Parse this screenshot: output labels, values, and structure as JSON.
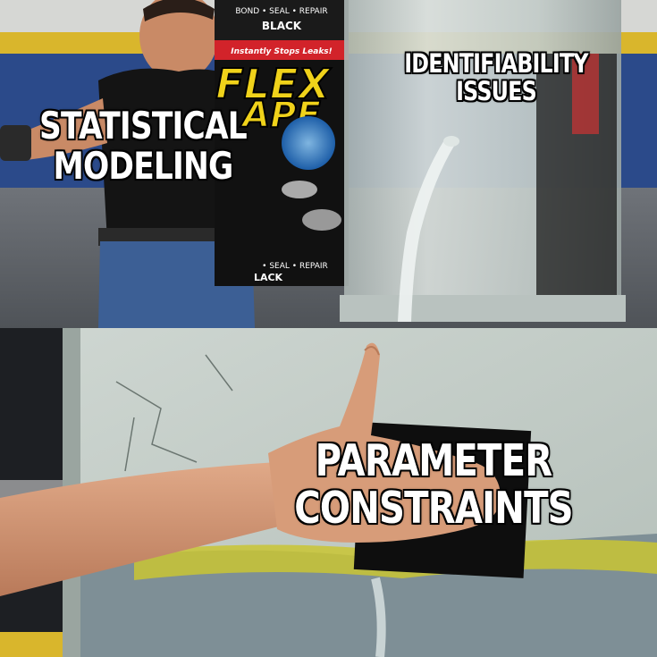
{
  "meme": {
    "template": "Flex Tape / Phil Swift",
    "captions": {
      "statistical_modeling": [
        "STATISTICAL",
        "MODELING"
      ],
      "identifiability_issues": [
        "IDENTIFIABILITY",
        "ISSUES"
      ],
      "parameter_constraints": [
        "PARAMETER",
        "CONSTRAINTS"
      ]
    },
    "product_text": {
      "brand_line1": "FLEX",
      "brand_line2": "APE",
      "top_label": "BOND • SEAL • REPAIR",
      "color": "BLACK",
      "tagline": "Instantly Stops Leaks!",
      "bottom_label": "• SEAL • REPAIR",
      "bottom_color": "LACK"
    },
    "colors": {
      "floor_blue": "#2b4a8a",
      "stripe_yellow": "#e8c531",
      "flex_yellow": "#f0d21a",
      "flex_red": "#d2232a",
      "shirt": "#141414",
      "jeans": "#3c5f95",
      "skin": "#d49a76",
      "tank_glass": "#c3ccc8",
      "wall_gray": "#c5cec8",
      "tape_black": "#0e0e0e",
      "caption_fill": "#ffffff",
      "caption_outline": "#000000"
    }
  }
}
